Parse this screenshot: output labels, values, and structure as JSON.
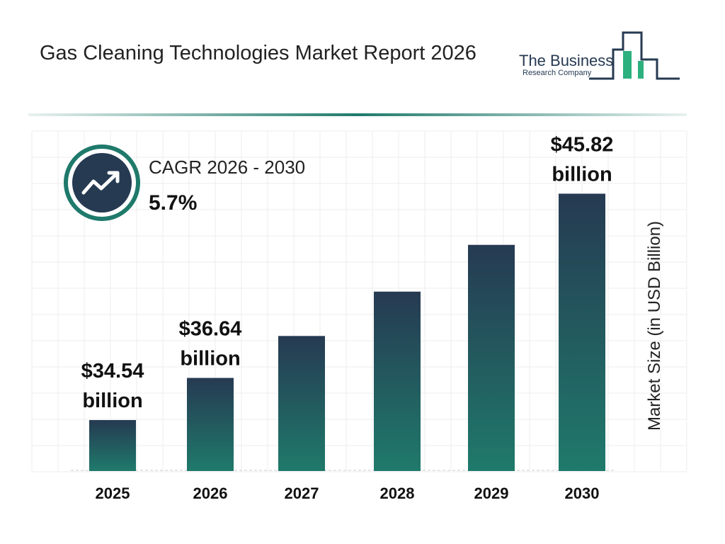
{
  "logo": {
    "line1": "The Business",
    "line2": "Research Company"
  },
  "chart_data": {
    "type": "bar",
    "title": "Gas Cleaning Technologies Market Report 2026",
    "cagr_label": "CAGR 2026 - 2030",
    "cagr_value": "5.7%",
    "y_label": "Market Size (in USD Billion)",
    "categories": [
      "2025",
      "2026",
      "2027",
      "2028",
      "2029",
      "2030"
    ],
    "values": [
      34.54,
      36.64,
      38.73,
      40.94,
      43.27,
      45.82
    ],
    "value_labels": [
      "$34.54 billion",
      "$36.64 billion",
      null,
      null,
      null,
      "$45.82 billion"
    ],
    "ylim": [
      32,
      47
    ],
    "color": "#1f7a6b"
  }
}
